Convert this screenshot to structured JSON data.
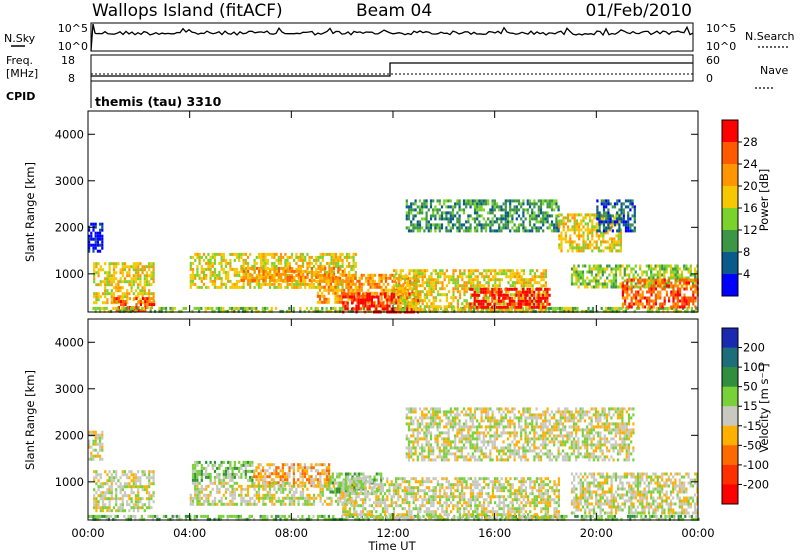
{
  "header": {
    "station": "Wallops Island (fitACF)",
    "beam": "Beam 04",
    "date": "01/Feb/2010"
  },
  "top_panel": {
    "nsky_label": "N.Sky",
    "nsky_ticks": [
      "10^5",
      "10^0"
    ],
    "nsearch_label": "N.Search",
    "nsearch_ticks": [
      "10^5",
      "10^0"
    ],
    "freq_label": "Freq.",
    "freq_unit": "[MHz]",
    "freq_ticks": [
      "18",
      "8"
    ],
    "nave_label": "Nave",
    "nave_ticks": [
      "60",
      "0"
    ],
    "cpid_label": "CPID",
    "cpid_value": "themis (tau) 3310"
  },
  "chart_data": [
    {
      "type": "heatmap",
      "name": "power",
      "ylabel": "Slant Range [km]",
      "xlabel": "",
      "x_ticks": [
        "00:00",
        "04:00",
        "08:00",
        "12:00",
        "16:00",
        "20:00",
        "00:00"
      ],
      "y_ticks": [
        1000,
        2000,
        3000,
        4000
      ],
      "xlim": [
        0,
        24
      ],
      "ylim": [
        180,
        4500
      ],
      "colorbar": {
        "label": "Power [dB]",
        "ticks": [
          "28",
          "24",
          "20",
          "16",
          "12",
          "8",
          "4"
        ],
        "colors": [
          "#ff0000",
          "#ff5a00",
          "#ff9600",
          "#f5c800",
          "#7bd22a",
          "#3c9646",
          "#0a5a8c",
          "#0000ff"
        ]
      },
      "echo_regions": [
        {
          "t0": 0.0,
          "t1": 0.6,
          "r0": 1500,
          "r1": 2100,
          "level": 7
        },
        {
          "t0": 0.2,
          "t1": 2.6,
          "r0": 400,
          "r1": 1250,
          "level": 3
        },
        {
          "t0": 1.0,
          "t1": 2.6,
          "r0": 200,
          "r1": 500,
          "level": 1
        },
        {
          "t0": 0.0,
          "t1": 24.0,
          "r0": 180,
          "r1": 290,
          "level": 4
        },
        {
          "t0": 4.0,
          "t1": 10.5,
          "r0": 700,
          "r1": 1450,
          "level": 3
        },
        {
          "t0": 6.0,
          "t1": 10.0,
          "r0": 850,
          "r1": 1150,
          "level": 2
        },
        {
          "t0": 9.0,
          "t1": 13.0,
          "r0": 400,
          "r1": 1000,
          "level": 2
        },
        {
          "t0": 10.0,
          "t1": 13.0,
          "r0": 200,
          "r1": 600,
          "level": 0
        },
        {
          "t0": 12.0,
          "t1": 18.0,
          "r0": 250,
          "r1": 1100,
          "level": 3
        },
        {
          "t0": 15.0,
          "t1": 18.2,
          "r0": 300,
          "r1": 700,
          "level": 0
        },
        {
          "t0": 12.5,
          "t1": 18.5,
          "r0": 1900,
          "r1": 2600,
          "level": 5
        },
        {
          "t0": 18.5,
          "t1": 21.0,
          "r0": 1500,
          "r1": 2300,
          "level": 3
        },
        {
          "t0": 20.0,
          "t1": 21.5,
          "r0": 1900,
          "r1": 2600,
          "level": 6
        },
        {
          "t0": 19.0,
          "t1": 24.0,
          "r0": 700,
          "r1": 1200,
          "level": 4
        },
        {
          "t0": 21.0,
          "t1": 24.0,
          "r0": 300,
          "r1": 900,
          "level": 1
        }
      ]
    },
    {
      "type": "heatmap",
      "name": "velocity",
      "ylabel": "Slant Range [km]",
      "xlabel": "Time UT",
      "x_ticks": [
        "00:00",
        "04:00",
        "08:00",
        "12:00",
        "16:00",
        "20:00",
        "00:00"
      ],
      "y_ticks": [
        1000,
        2000,
        3000,
        4000
      ],
      "xlim": [
        0,
        24
      ],
      "ylim": [
        180,
        4500
      ],
      "colorbar": {
        "label": "Velocity [m s⁻¹]",
        "ticks": [
          "200",
          "100",
          "50",
          "15",
          "-15",
          "-50",
          "-100",
          "-200"
        ],
        "colors": [
          "#1a2ab0",
          "#1d6e7a",
          "#2f8f3e",
          "#79d13a",
          "#c8c8c0",
          "#ffb000",
          "#ff6a00",
          "#ff3000",
          "#ff0000"
        ]
      },
      "echo_regions": [
        {
          "t0": 0.0,
          "t1": 0.6,
          "r0": 1500,
          "r1": 2100,
          "level": 4
        },
        {
          "t0": 0.2,
          "t1": 2.6,
          "r0": 400,
          "r1": 1250,
          "level": 4
        },
        {
          "t0": 0.0,
          "t1": 24.0,
          "r0": 180,
          "r1": 290,
          "level": 3
        },
        {
          "t0": 4.0,
          "t1": 6.5,
          "r0": 1000,
          "r1": 1450,
          "level": 3
        },
        {
          "t0": 6.5,
          "t1": 9.5,
          "r0": 900,
          "r1": 1400,
          "level": 5
        },
        {
          "t0": 4.0,
          "t1": 10.5,
          "r0": 500,
          "r1": 1000,
          "level": 4
        },
        {
          "t0": 9.5,
          "t1": 11.5,
          "r0": 800,
          "r1": 1200,
          "level": 3
        },
        {
          "t0": 10.0,
          "t1": 18.5,
          "r0": 250,
          "r1": 1100,
          "level": 4
        },
        {
          "t0": 12.5,
          "t1": 21.5,
          "r0": 1500,
          "r1": 2600,
          "level": 4
        },
        {
          "t0": 19.0,
          "t1": 24.0,
          "r0": 350,
          "r1": 1200,
          "level": 4
        }
      ]
    }
  ]
}
